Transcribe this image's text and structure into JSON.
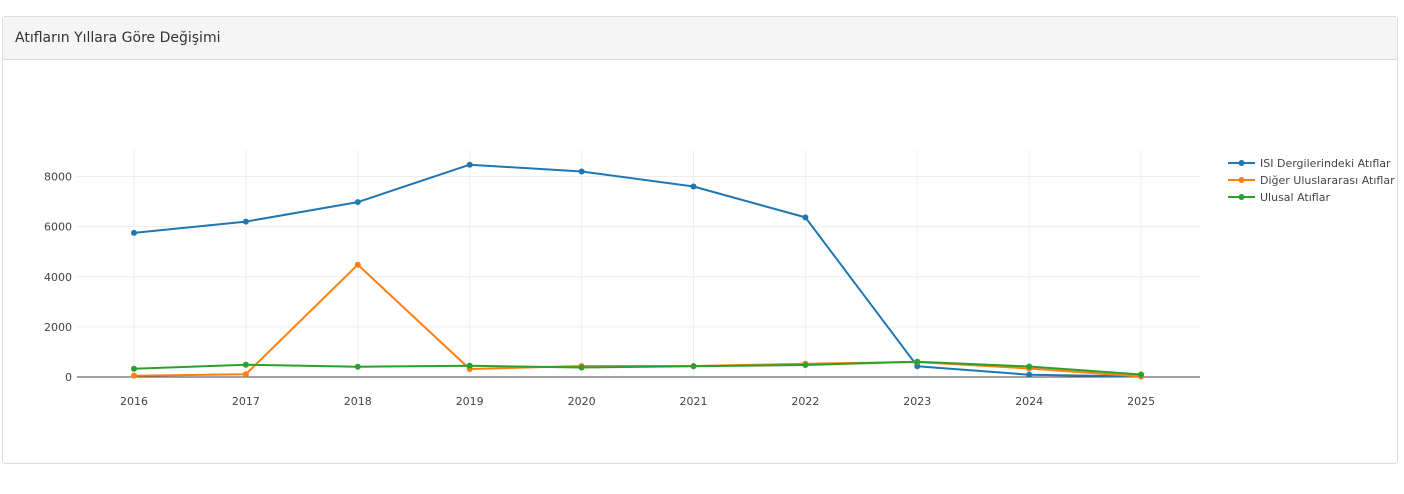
{
  "panel": {
    "title": "Atıfların Yıllara Göre Değişimi"
  },
  "colors": {
    "isi": "#1f77b4",
    "diger": "#ff7f0e",
    "ulusal": "#2ca02c",
    "grid": "#eeeeee",
    "axis": "#444444"
  },
  "chart_data": {
    "type": "line",
    "title": "",
    "xlabel": "",
    "ylabel": "",
    "x": [
      "2016",
      "2017",
      "2018",
      "2019",
      "2020",
      "2021",
      "2022",
      "2023",
      "2024",
      "2025"
    ],
    "ylim": [
      0,
      9000
    ],
    "yticks": [
      0,
      2000,
      4000,
      6000,
      8000
    ],
    "grid": true,
    "legend_position": "right",
    "series": [
      {
        "name": "ISI Dergilerindeki Atıflar",
        "color": "#1f77b4",
        "values": [
          5750,
          6200,
          6980,
          8470,
          8200,
          7600,
          6370,
          430,
          90,
          20
        ]
      },
      {
        "name": "Diğer Uluslararası Atıflar",
        "color": "#ff7f0e",
        "values": [
          50,
          110,
          4480,
          320,
          440,
          440,
          530,
          600,
          340,
          20
        ]
      },
      {
        "name": "Ulusal Atıflar",
        "color": "#2ca02c",
        "values": [
          330,
          490,
          410,
          450,
          380,
          430,
          480,
          610,
          420,
          100
        ]
      }
    ]
  }
}
